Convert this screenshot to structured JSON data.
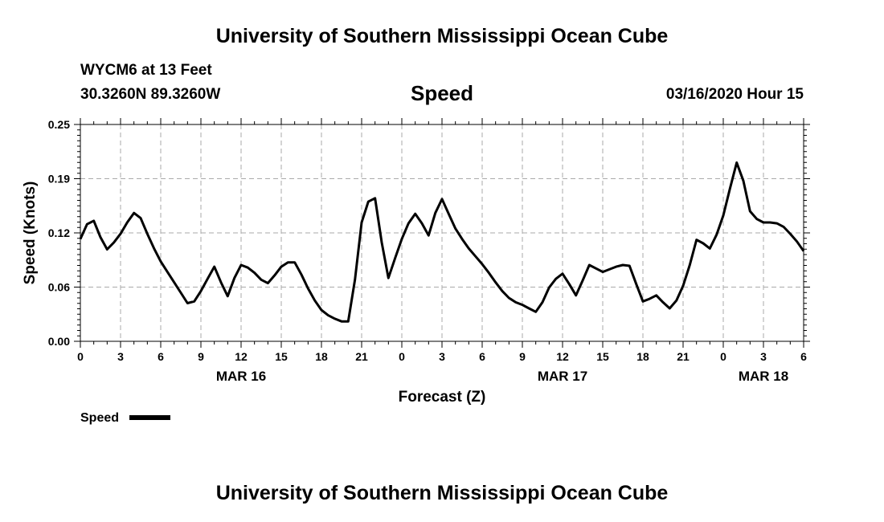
{
  "header": {
    "title": "University of Southern Mississippi Ocean Cube",
    "station": "WYCM6 at 13 Feet",
    "coords": "30.3260N 89.3260W",
    "variable": "Speed",
    "datetime": "03/16/2020 Hour 15",
    "footer_title": "University of Southern Mississippi Ocean Cube"
  },
  "chart_data": {
    "type": "line",
    "xlabel": "Forecast (Z)",
    "ylabel": "Speed (Knots)",
    "ylim": [
      0,
      0.25
    ],
    "xlim_hours": [
      0,
      54
    ],
    "y_ticks": [
      "0.00",
      "0.06",
      "0.12",
      "0.19",
      "0.25"
    ],
    "x_ticks": [
      "0",
      "3",
      "6",
      "9",
      "12",
      "15",
      "18",
      "21",
      "0",
      "3",
      "6",
      "9",
      "12",
      "15",
      "18",
      "21",
      "0",
      "3",
      "6"
    ],
    "date_labels": [
      {
        "label": "MAR 16",
        "hour": 12
      },
      {
        "label": "MAR 17",
        "hour": 36
      },
      {
        "label": "MAR 18",
        "hour": 51
      }
    ],
    "grid": true,
    "line_color": "#000000",
    "series": [
      {
        "name": "Speed",
        "x": [
          0,
          0.5,
          1,
          1.5,
          2,
          2.5,
          3,
          3.5,
          4,
          4.5,
          5,
          5.5,
          6,
          6.5,
          7,
          7.5,
          8,
          8.5,
          9,
          9.5,
          10,
          10.5,
          11,
          11.5,
          12,
          12.5,
          13,
          13.5,
          14,
          14.5,
          15,
          15.5,
          16,
          16.5,
          17,
          17.5,
          18,
          18.5,
          19,
          19.5,
          20,
          20.5,
          21,
          21.5,
          22,
          22.5,
          23,
          23.5,
          24,
          24.5,
          25,
          25.5,
          26,
          26.5,
          27,
          27.5,
          28,
          28.5,
          29,
          29.5,
          30,
          30.5,
          31,
          31.5,
          32,
          32.5,
          33,
          33.5,
          34,
          34.5,
          35,
          35.5,
          36,
          36.5,
          37,
          37.5,
          38,
          38.5,
          39,
          39.5,
          40,
          40.5,
          41,
          41.5,
          42,
          42.5,
          43,
          43.5,
          44,
          44.5,
          45,
          45.5,
          46,
          46.5,
          47,
          47.5,
          48,
          48.5,
          49,
          49.5,
          50,
          50.5,
          51,
          51.5,
          52,
          52.5,
          53,
          53.5,
          54
        ],
        "values": [
          0.118,
          0.135,
          0.139,
          0.12,
          0.106,
          0.114,
          0.124,
          0.137,
          0.148,
          0.142,
          0.124,
          0.107,
          0.092,
          0.08,
          0.068,
          0.056,
          0.044,
          0.046,
          0.058,
          0.072,
          0.086,
          0.068,
          0.052,
          0.073,
          0.088,
          0.085,
          0.079,
          0.071,
          0.067,
          0.076,
          0.086,
          0.091,
          0.091,
          0.077,
          0.061,
          0.047,
          0.036,
          0.03,
          0.026,
          0.023,
          0.023,
          0.071,
          0.137,
          0.161,
          0.165,
          0.114,
          0.073,
          0.096,
          0.118,
          0.136,
          0.147,
          0.136,
          0.122,
          0.148,
          0.164,
          0.147,
          0.13,
          0.118,
          0.107,
          0.098,
          0.089,
          0.079,
          0.068,
          0.058,
          0.05,
          0.045,
          0.042,
          0.038,
          0.034,
          0.045,
          0.062,
          0.072,
          0.078,
          0.066,
          0.053,
          0.07,
          0.088,
          0.084,
          0.08,
          0.083,
          0.086,
          0.088,
          0.087,
          0.066,
          0.046,
          0.049,
          0.053,
          0.045,
          0.038,
          0.047,
          0.064,
          0.088,
          0.117,
          0.113,
          0.107,
          0.123,
          0.145,
          0.176,
          0.206,
          0.185,
          0.15,
          0.141,
          0.137,
          0.137,
          0.136,
          0.132,
          0.124,
          0.115,
          0.104
        ]
      }
    ],
    "legend": {
      "label": "Speed",
      "position": "bottom-left"
    }
  }
}
